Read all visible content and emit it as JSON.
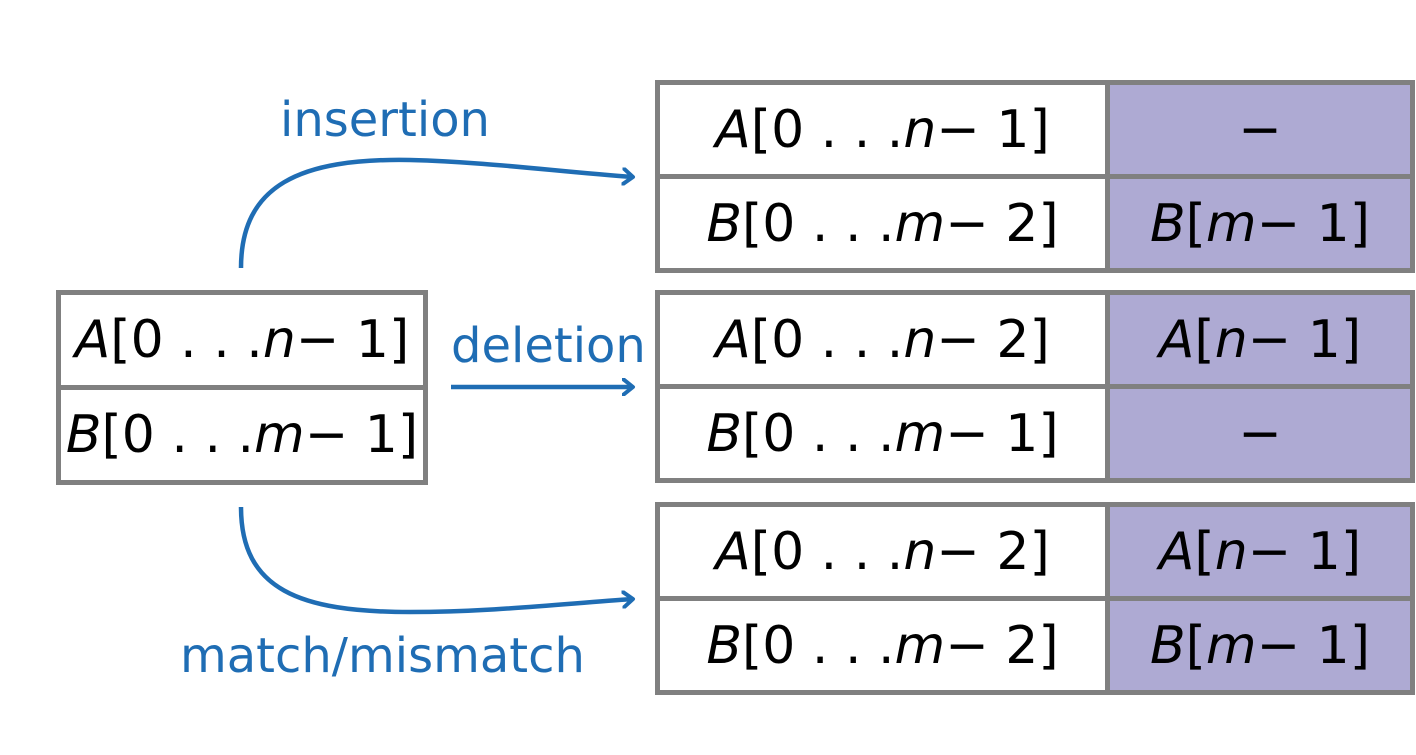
{
  "source": {
    "row_a": "A[0 . . . n − 1]",
    "row_b": "B[0 . . . m − 1]"
  },
  "operations": [
    {
      "label": "insertion",
      "top_left": "A[0 . . . n − 1]",
      "top_right": "−",
      "bottom_left": "B[0 . . . m − 2]",
      "bottom_right": "B[m − 1]"
    },
    {
      "label": "deletion",
      "top_left": "A[0 . . . n − 2]",
      "top_right": "A[n − 1]",
      "bottom_left": "B[0 . . . m − 1]",
      "bottom_right": "−"
    },
    {
      "label": "match/mismatch",
      "top_left": "A[0 . . . n − 2]",
      "top_right": "A[n − 1]",
      "bottom_left": "B[0 . . . m − 2]",
      "bottom_right": "B[m − 1]"
    }
  ],
  "colors": {
    "arrow": "#1f6db4",
    "highlight": "#aeaad3",
    "border": "#808080"
  }
}
